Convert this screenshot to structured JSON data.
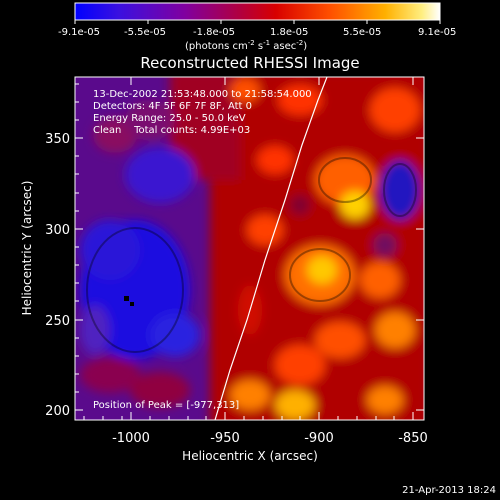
{
  "colorbar": {
    "ticks": [
      "-9.1e-05",
      "-5.5e-05",
      "-1.8e-05",
      "1.8e-05",
      "5.5e-05",
      "9.1e-05"
    ],
    "unit_prefix": "(photons cm",
    "unit_exp1": "-2",
    "unit_mid": " s",
    "unit_exp2": "-1",
    "unit_mid2": " asec",
    "unit_exp3": "-2",
    "unit_suffix": ")",
    "colors": [
      "#0000ff",
      "#4000d0",
      "#7000a0",
      "#9a0040",
      "#c80000",
      "#ff4000",
      "#ffa000",
      "#ffe000",
      "#ffffff"
    ]
  },
  "plot": {
    "title": "Reconstructed RHESSI Image",
    "xlabel": "Heliocentric X (arcsec)",
    "ylabel": "Heliocentric Y (arcsec)",
    "xticks": [
      "-1000",
      "-950",
      "-900",
      "-850"
    ],
    "yticks": [
      "200",
      "250",
      "300",
      "350"
    ],
    "info": [
      "13-Dec-2002 21:53:48.000 to 21:58:54.000",
      "Detectors: 4F 5F 6F 7F 8F, Att 0",
      "Energy Range: 25.0 - 50.0 keV",
      "Clean    Total counts: 4.99E+03"
    ],
    "peak": "Position of Peak = [-977,313]"
  },
  "footer": {
    "timestamp": "21-Apr-2013 18:24"
  },
  "chart_data": {
    "type": "heatmap",
    "title": "Reconstructed RHESSI Image",
    "xlabel": "Heliocentric X (arcsec)",
    "ylabel": "Heliocentric Y (arcsec)",
    "xlim": [
      -1032,
      -837
    ],
    "ylim": [
      193,
      382
    ],
    "colorbar_range": [
      -9.1e-05,
      9.1e-05
    ],
    "colormap": "blue-purple-red-orange-yellow-white",
    "limb_curve_x": [
      -962,
      -954,
      -944,
      -934,
      -924,
      -914,
      -906,
      -900
    ],
    "limb_curve_y": [
      193,
      230,
      265,
      300,
      330,
      355,
      372,
      382
    ],
    "blue_region_center": [
      -1000,
      260
    ],
    "hot_regions": [
      {
        "x": -880,
        "y": 310,
        "level": "high"
      },
      {
        "x": -895,
        "y": 270,
        "level": "high"
      },
      {
        "x": -940,
        "y": 375,
        "level": "medium"
      },
      {
        "x": -905,
        "y": 205,
        "level": "high"
      }
    ]
  }
}
